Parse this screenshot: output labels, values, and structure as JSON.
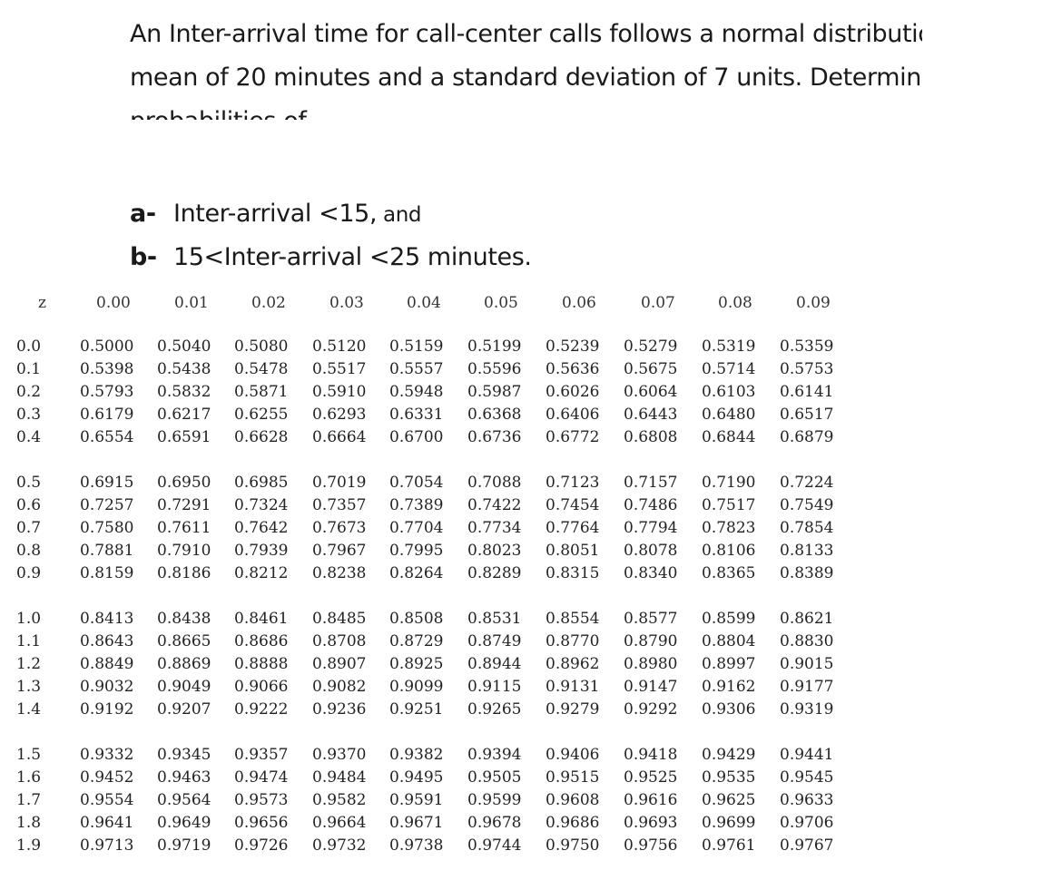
{
  "question": {
    "text": "An Inter-arrival  time for call-center calls follows a normal distribution with a mean of 20 minutes and a standard deviation of 7 units. Determine the probabilities of"
  },
  "parts": [
    {
      "marker": "a-",
      "text": "Inter-arrival <15,",
      "suffix": " and"
    },
    {
      "marker": "b-",
      "text": "15<Inter-arrival  <25 minutes.",
      "suffix": ""
    }
  ],
  "ztable": {
    "header": [
      "z",
      "0.00",
      "0.01",
      "0.02",
      "0.03",
      "0.04",
      "0.05",
      "0.06",
      "0.07",
      "0.08",
      "0.09"
    ],
    "groups": [
      [
        [
          "0.0",
          "0.5000",
          "0.5040",
          "0.5080",
          "0.5120",
          "0.5159",
          "0.5199",
          "0.5239",
          "0.5279",
          "0.5319",
          "0.5359"
        ],
        [
          "0.1",
          "0.5398",
          "0.5438",
          "0.5478",
          "0.5517",
          "0.5557",
          "0.5596",
          "0.5636",
          "0.5675",
          "0.5714",
          "0.5753"
        ],
        [
          "0.2",
          "0.5793",
          "0.5832",
          "0.5871",
          "0.5910",
          "0.5948",
          "0.5987",
          "0.6026",
          "0.6064",
          "0.6103",
          "0.6141"
        ],
        [
          "0.3",
          "0.6179",
          "0.6217",
          "0.6255",
          "0.6293",
          "0.6331",
          "0.6368",
          "0.6406",
          "0.6443",
          "0.6480",
          "0.6517"
        ],
        [
          "0.4",
          "0.6554",
          "0.6591",
          "0.6628",
          "0.6664",
          "0.6700",
          "0.6736",
          "0.6772",
          "0.6808",
          "0.6844",
          "0.6879"
        ]
      ],
      [
        [
          "0.5",
          "0.6915",
          "0.6950",
          "0.6985",
          "0.7019",
          "0.7054",
          "0.7088",
          "0.7123",
          "0.7157",
          "0.7190",
          "0.7224"
        ],
        [
          "0.6",
          "0.7257",
          "0.7291",
          "0.7324",
          "0.7357",
          "0.7389",
          "0.7422",
          "0.7454",
          "0.7486",
          "0.7517",
          "0.7549"
        ],
        [
          "0.7",
          "0.7580",
          "0.7611",
          "0.7642",
          "0.7673",
          "0.7704",
          "0.7734",
          "0.7764",
          "0.7794",
          "0.7823",
          "0.7854"
        ],
        [
          "0.8",
          "0.7881",
          "0.7910",
          "0.7939",
          "0.7967",
          "0.7995",
          "0.8023",
          "0.8051",
          "0.8078",
          "0.8106",
          "0.8133"
        ],
        [
          "0.9",
          "0.8159",
          "0.8186",
          "0.8212",
          "0.8238",
          "0.8264",
          "0.8289",
          "0.8315",
          "0.8340",
          "0.8365",
          "0.8389"
        ]
      ],
      [
        [
          "1.0",
          "0.8413",
          "0.8438",
          "0.8461",
          "0.8485",
          "0.8508",
          "0.8531",
          "0.8554",
          "0.8577",
          "0.8599",
          "0.8621"
        ],
        [
          "1.1",
          "0.8643",
          "0.8665",
          "0.8686",
          "0.8708",
          "0.8729",
          "0.8749",
          "0.8770",
          "0.8790",
          "0.8804",
          "0.8830"
        ],
        [
          "1.2",
          "0.8849",
          "0.8869",
          "0.8888",
          "0.8907",
          "0.8925",
          "0.8944",
          "0.8962",
          "0.8980",
          "0.8997",
          "0.9015"
        ],
        [
          "1.3",
          "0.9032",
          "0.9049",
          "0.9066",
          "0.9082",
          "0.9099",
          "0.9115",
          "0.9131",
          "0.9147",
          "0.9162",
          "0.9177"
        ],
        [
          "1.4",
          "0.9192",
          "0.9207",
          "0.9222",
          "0.9236",
          "0.9251",
          "0.9265",
          "0.9279",
          "0.9292",
          "0.9306",
          "0.9319"
        ]
      ],
      [
        [
          "1.5",
          "0.9332",
          "0.9345",
          "0.9357",
          "0.9370",
          "0.9382",
          "0.9394",
          "0.9406",
          "0.9418",
          "0.9429",
          "0.9441"
        ],
        [
          "1.6",
          "0.9452",
          "0.9463",
          "0.9474",
          "0.9484",
          "0.9495",
          "0.9505",
          "0.9515",
          "0.9525",
          "0.9535",
          "0.9545"
        ],
        [
          "1.7",
          "0.9554",
          "0.9564",
          "0.9573",
          "0.9582",
          "0.9591",
          "0.9599",
          "0.9608",
          "0.9616",
          "0.9625",
          "0.9633"
        ],
        [
          "1.8",
          "0.9641",
          "0.9649",
          "0.9656",
          "0.9664",
          "0.9671",
          "0.9678",
          "0.9686",
          "0.9693",
          "0.9699",
          "0.9706"
        ],
        [
          "1.9",
          "0.9713",
          "0.9719",
          "0.9726",
          "0.9732",
          "0.9738",
          "0.9744",
          "0.9750",
          "0.9756",
          "0.9761",
          "0.9767"
        ]
      ]
    ]
  }
}
